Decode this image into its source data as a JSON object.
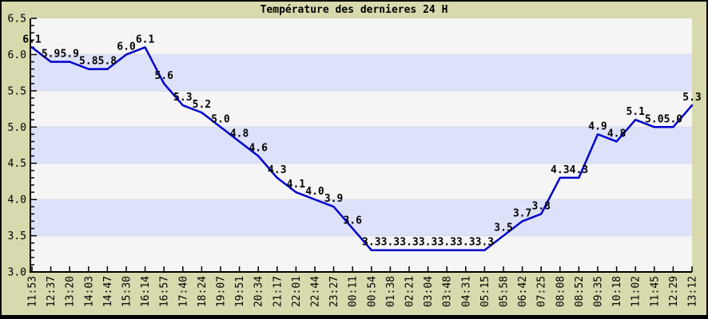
{
  "chart_data": {
    "type": "line",
    "title": "Température des dernieres 24 H",
    "categories": [
      "11:53",
      "12:37",
      "13:20",
      "14:03",
      "14:47",
      "15:30",
      "16:14",
      "16:57",
      "17:40",
      "18:24",
      "19:07",
      "19:51",
      "20:34",
      "21:17",
      "22:01",
      "22:44",
      "23:27",
      "00:11",
      "00:54",
      "01:38",
      "02:21",
      "03:04",
      "03:48",
      "04:31",
      "05:15",
      "05:58",
      "06:42",
      "07:25",
      "08:08",
      "08:52",
      "09:35",
      "10:18",
      "11:02",
      "11:45",
      "12:29",
      "13:12"
    ],
    "values": [
      6.1,
      5.9,
      5.9,
      5.8,
      5.8,
      6.0,
      6.1,
      5.6,
      5.3,
      5.2,
      5.0,
      4.8,
      4.6,
      4.3,
      4.1,
      4.0,
      3.9,
      3.6,
      3.3,
      3.3,
      3.3,
      3.3,
      3.3,
      3.3,
      3.3,
      3.5,
      3.7,
      3.8,
      4.3,
      4.3,
      4.9,
      4.8,
      5.1,
      5.0,
      5.0,
      5.3
    ],
    "point_labels": [
      "6.1",
      "5.9",
      "5.9",
      "5.8",
      "5.8",
      "6.0",
      "6.1",
      "5.6",
      "5.3",
      "5.2",
      "5.0",
      "4.8",
      "4.6",
      "4.3",
      "4.1",
      "4.0",
      "3.9",
      "3.6",
      "3.3",
      "3.3",
      "3.3",
      "3.3",
      "3.3",
      "3.3",
      "3.3",
      "3.5",
      "3.7",
      "3.8",
      "4.3",
      "4.3",
      "4.9",
      "4.8",
      "5.1",
      "5.0",
      "5.0",
      "5.3"
    ],
    "xlabel": "",
    "ylabel": "",
    "ylim": [
      3.0,
      6.5
    ],
    "y_major_step": 0.5,
    "y_minor_step": 0.1,
    "y_tick_labels": [
      "6.5",
      "6.0",
      "5.5",
      "5.0",
      "4.5",
      "4.0",
      "3.5",
      "3.0"
    ],
    "legend": null,
    "grid": "alternating-horizontal-bands",
    "colors": {
      "background": "#d9d9ae",
      "band_light": "#f5f5f5",
      "band_blue": "#dde2fa",
      "band_edge": "#d4d8ea",
      "line": "#0000cc",
      "point_label": "#cc1111",
      "axis": "#000000",
      "border": "#000000",
      "text": "#000000"
    }
  }
}
